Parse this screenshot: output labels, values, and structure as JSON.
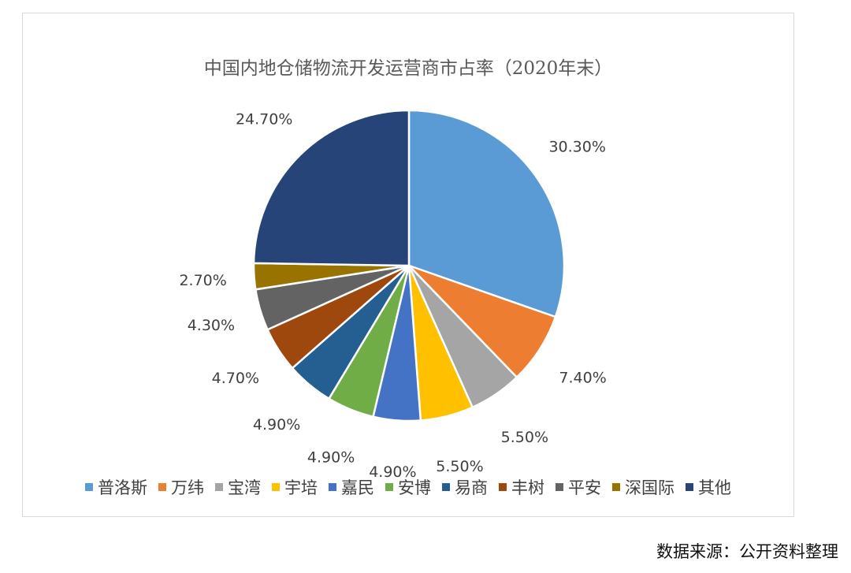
{
  "chart_data": {
    "type": "pie",
    "title": "中国内地仓储物流开发运营商市占率（2020年末）",
    "categories": [
      "普洛斯",
      "万纬",
      "宝湾",
      "宇培",
      "嘉民",
      "安博",
      "易商",
      "丰树",
      "平安",
      "深国际",
      "其他"
    ],
    "values": [
      30.3,
      7.4,
      5.5,
      5.5,
      4.9,
      4.9,
      4.9,
      4.7,
      4.3,
      2.7,
      24.7
    ],
    "value_labels": [
      "30.30%",
      "7.40%",
      "5.50%",
      "5.50%",
      "4.90%",
      "4.90%",
      "4.90%",
      "4.70%",
      "4.30%",
      "2.70%",
      "24.70%"
    ],
    "colors": [
      "#5b9bd5",
      "#ed7d31",
      "#a5a5a5",
      "#ffc000",
      "#4472c4",
      "#70ad47",
      "#255e91",
      "#9e480e",
      "#636363",
      "#997300",
      "#264478"
    ],
    "legend_position": "bottom",
    "start_angle_deg": 0,
    "direction": "clockwise"
  },
  "source": "数据来源：公开资料整理"
}
